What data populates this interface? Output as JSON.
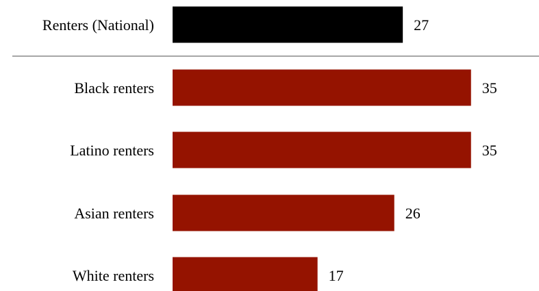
{
  "chart_data": {
    "type": "bar",
    "orientation": "horizontal",
    "categories": [
      "Renters (National)",
      "Black renters",
      "Latino renters",
      "Asian renters",
      "White renters"
    ],
    "values": [
      27,
      35,
      35,
      26,
      17
    ],
    "bar_colors": [
      "#000000",
      "#951300",
      "#951300",
      "#951300",
      "#951300"
    ],
    "separator_after_first": true,
    "separator_color": "#a6a6a6",
    "title": "",
    "xlabel": "",
    "ylabel": "",
    "xlim": [
      0,
      36.5
    ],
    "grid": false,
    "legend": "none"
  }
}
